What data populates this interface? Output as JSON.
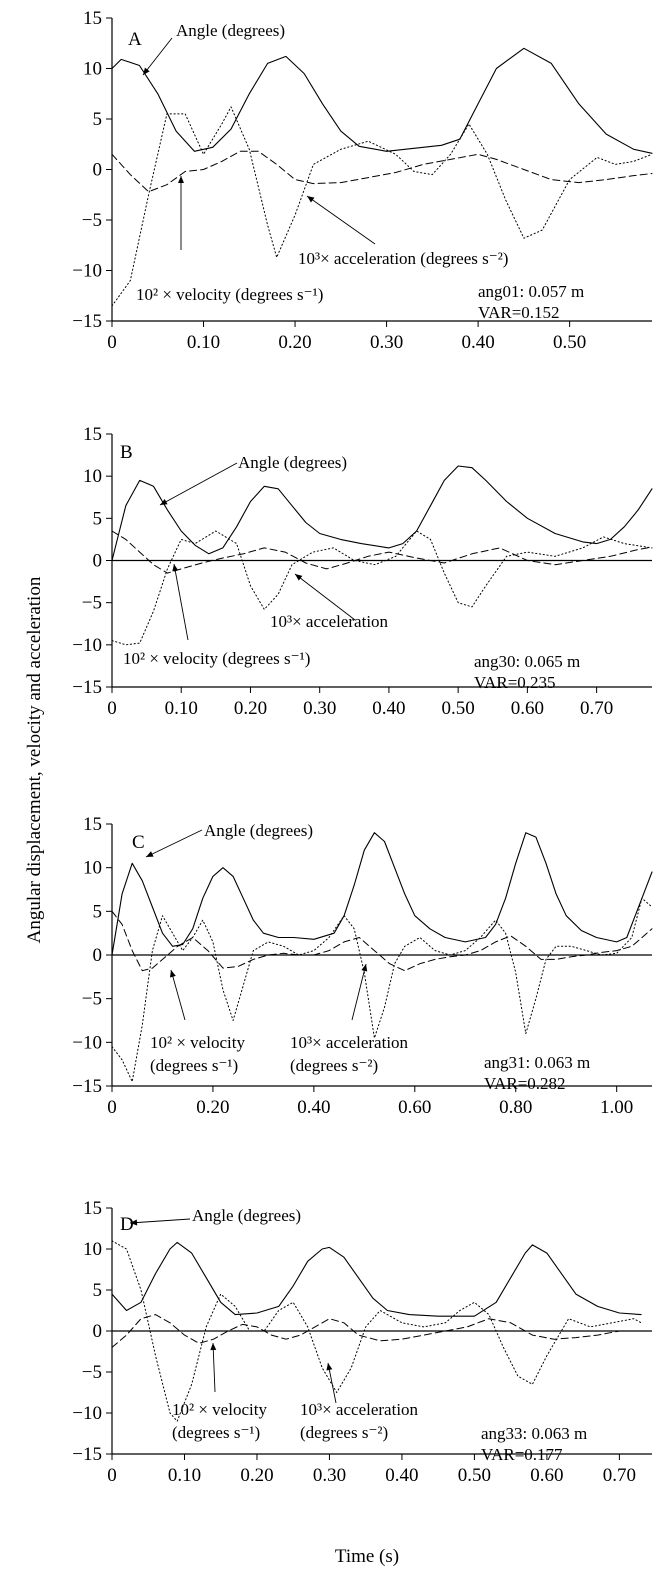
{
  "figure": {
    "ylabel": "Angular displacement, velocity and acceleration",
    "xlabel": "Time (s)"
  },
  "chart_data": [
    {
      "type": "line",
      "panel": "A",
      "xlim": [
        0,
        0.59
      ],
      "ylim": [
        -15,
        15
      ],
      "xticks": [
        0,
        0.1,
        0.2,
        0.3,
        0.4,
        0.5
      ],
      "xtick_labels": [
        "0",
        "0.10",
        "0.20",
        "0.30",
        "0.40",
        "0.50"
      ],
      "yticks": [
        15,
        10,
        5,
        0,
        -5,
        -10,
        -15
      ],
      "ytick_labels": [
        "15",
        "10",
        "5",
        "0",
        "−5",
        "−10",
        "−15"
      ],
      "zero_line": false,
      "info": [
        "ang01: 0.057 m",
        "VAR=0.152"
      ],
      "series": [
        {
          "style": "solid",
          "x": [
            0,
            0.01,
            0.03,
            0.05,
            0.07,
            0.09,
            0.11,
            0.13,
            0.15,
            0.17,
            0.19,
            0.21,
            0.23,
            0.25,
            0.27,
            0.3,
            0.33,
            0.36,
            0.38,
            0.4,
            0.42,
            0.45,
            0.48,
            0.51,
            0.54,
            0.57,
            0.59
          ],
          "y": [
            10.0,
            10.9,
            10.3,
            7.5,
            3.8,
            1.8,
            2.2,
            4.0,
            7.5,
            10.5,
            11.2,
            9.5,
            6.5,
            3.8,
            2.3,
            1.8,
            2.1,
            2.4,
            3.0,
            6.5,
            10.0,
            12.0,
            10.5,
            6.5,
            3.5,
            2.0,
            1.6
          ]
        },
        {
          "style": "dotted",
          "x": [
            0,
            0.02,
            0.04,
            0.06,
            0.08,
            0.1,
            0.12,
            0.13,
            0.15,
            0.17,
            0.18,
            0.2,
            0.22,
            0.25,
            0.28,
            0.31,
            0.33,
            0.35,
            0.37,
            0.39,
            0.41,
            0.43,
            0.45,
            0.47,
            0.5,
            0.53,
            0.55,
            0.57,
            0.59
          ],
          "y": [
            -13.5,
            -11.0,
            -2.5,
            5.5,
            5.5,
            1.5,
            4.5,
            6.2,
            2.0,
            -5.5,
            -8.7,
            -4.5,
            0.5,
            2.0,
            2.8,
            1.5,
            -0.2,
            -0.5,
            1.5,
            4.5,
            1.5,
            -3.0,
            -6.8,
            -6.0,
            -1.0,
            1.2,
            0.5,
            0.8,
            1.5
          ]
        },
        {
          "style": "dashed",
          "x": [
            0,
            0.02,
            0.04,
            0.06,
            0.08,
            0.1,
            0.12,
            0.14,
            0.16,
            0.18,
            0.2,
            0.22,
            0.25,
            0.28,
            0.31,
            0.34,
            0.37,
            0.4,
            0.42,
            0.45,
            0.48,
            0.51,
            0.54,
            0.57,
            0.59
          ],
          "y": [
            1.5,
            -0.5,
            -2.2,
            -1.5,
            -0.2,
            0.0,
            0.8,
            1.8,
            1.8,
            0.5,
            -1.0,
            -1.4,
            -1.3,
            -0.8,
            -0.3,
            0.5,
            1.0,
            1.5,
            1.0,
            0.0,
            -1.0,
            -1.3,
            -1.0,
            -0.6,
            -0.4
          ]
        }
      ],
      "annotations": [
        {
          "text": "Angle (degrees)"
        },
        {
          "text": "10² × velocity (degrees s⁻¹)"
        },
        {
          "text": "10³× acceleration (degrees s⁻²)"
        }
      ]
    },
    {
      "type": "line",
      "panel": "B",
      "xlim": [
        0,
        0.78
      ],
      "ylim": [
        -15,
        15
      ],
      "xticks": [
        0,
        0.1,
        0.2,
        0.3,
        0.4,
        0.5,
        0.6,
        0.7
      ],
      "xtick_labels": [
        "0",
        "0.10",
        "0.20",
        "0.30",
        "0.40",
        "0.50",
        "0.60",
        "0.70"
      ],
      "yticks": [
        15,
        10,
        5,
        0,
        -5,
        -10,
        -15
      ],
      "ytick_labels": [
        "15",
        "10",
        "5",
        "0",
        "−5",
        "−10",
        "−15"
      ],
      "zero_line": true,
      "info": [
        "ang30: 0.065 m",
        "VAR=0.235"
      ],
      "series": [
        {
          "style": "solid",
          "x": [
            0,
            0.02,
            0.04,
            0.06,
            0.08,
            0.1,
            0.12,
            0.14,
            0.16,
            0.18,
            0.2,
            0.22,
            0.24,
            0.26,
            0.28,
            0.3,
            0.33,
            0.36,
            0.4,
            0.42,
            0.44,
            0.46,
            0.48,
            0.5,
            0.52,
            0.54,
            0.57,
            0.6,
            0.64,
            0.68,
            0.7,
            0.72,
            0.74,
            0.76,
            0.78
          ],
          "y": [
            0.0,
            6.5,
            9.5,
            8.8,
            6.0,
            3.5,
            1.8,
            0.8,
            1.5,
            4.0,
            7.0,
            8.8,
            8.5,
            6.5,
            4.5,
            3.2,
            2.5,
            2.0,
            1.5,
            2.0,
            3.5,
            6.5,
            9.5,
            11.2,
            11.0,
            9.5,
            7.0,
            5.0,
            3.2,
            2.2,
            2.0,
            2.5,
            4.0,
            6.0,
            8.5
          ]
        },
        {
          "style": "dotted",
          "x": [
            0,
            0.02,
            0.04,
            0.06,
            0.08,
            0.1,
            0.12,
            0.15,
            0.18,
            0.2,
            0.22,
            0.24,
            0.26,
            0.29,
            0.32,
            0.35,
            0.38,
            0.41,
            0.44,
            0.46,
            0.48,
            0.5,
            0.52,
            0.54,
            0.57,
            0.6,
            0.64,
            0.68,
            0.71,
            0.74,
            0.78
          ],
          "y": [
            -9.5,
            -10.0,
            -9.8,
            -6.0,
            -1.0,
            2.5,
            2.0,
            3.5,
            2.0,
            -3.0,
            -5.8,
            -4.0,
            -0.5,
            1.0,
            1.5,
            0.0,
            -0.5,
            0.5,
            3.5,
            2.5,
            -1.5,
            -5.0,
            -5.5,
            -3.0,
            0.5,
            1.0,
            0.5,
            1.5,
            2.8,
            2.0,
            1.5
          ]
        },
        {
          "style": "dashed",
          "x": [
            0,
            0.02,
            0.04,
            0.06,
            0.08,
            0.1,
            0.13,
            0.16,
            0.19,
            0.22,
            0.25,
            0.28,
            0.31,
            0.34,
            0.37,
            0.4,
            0.44,
            0.48,
            0.52,
            0.56,
            0.6,
            0.64,
            0.68,
            0.72,
            0.76,
            0.78
          ],
          "y": [
            3.5,
            2.5,
            1.0,
            -0.5,
            -1.5,
            -1.0,
            -0.3,
            0.3,
            0.8,
            1.5,
            1.0,
            -0.3,
            -1.0,
            -0.3,
            0.5,
            1.0,
            0.3,
            -0.3,
            0.8,
            1.5,
            0.0,
            -0.5,
            0.0,
            0.5,
            1.3,
            1.6
          ]
        }
      ],
      "annotations": [
        {
          "text": "Angle (degrees)"
        },
        {
          "text": "10² × velocity (degrees s⁻¹)"
        },
        {
          "text": "10³× acceleration"
        }
      ]
    },
    {
      "type": "line",
      "panel": "C",
      "xlim": [
        0,
        1.07
      ],
      "ylim": [
        -15,
        15
      ],
      "xticks": [
        0,
        0.2,
        0.4,
        0.6,
        0.8,
        1.0
      ],
      "xtick_labels": [
        "0",
        "0.20",
        "0.40",
        "0.60",
        "0.80",
        "1.00"
      ],
      "yticks": [
        15,
        10,
        5,
        0,
        -5,
        -10,
        -15
      ],
      "ytick_labels": [
        "15",
        "10",
        "5",
        "0",
        "−5",
        "−10",
        "−15"
      ],
      "zero_line": true,
      "info": [
        "ang31: 0.063 m",
        "VAR=0.282"
      ],
      "series": [
        {
          "style": "solid",
          "x": [
            0,
            0.02,
            0.04,
            0.06,
            0.08,
            0.1,
            0.12,
            0.14,
            0.16,
            0.18,
            0.2,
            0.22,
            0.24,
            0.26,
            0.28,
            0.3,
            0.33,
            0.36,
            0.4,
            0.44,
            0.46,
            0.48,
            0.5,
            0.52,
            0.54,
            0.56,
            0.58,
            0.6,
            0.63,
            0.66,
            0.7,
            0.74,
            0.76,
            0.78,
            0.8,
            0.82,
            0.84,
            0.86,
            0.88,
            0.9,
            0.93,
            0.96,
            1.0,
            1.02,
            1.04,
            1.07
          ],
          "y": [
            0.0,
            7.0,
            10.5,
            8.5,
            5.5,
            2.5,
            1.0,
            1.2,
            3.0,
            6.5,
            9.0,
            10.0,
            9.0,
            6.5,
            4.0,
            2.5,
            2.0,
            2.0,
            1.8,
            2.5,
            4.5,
            8.0,
            12.0,
            14.0,
            13.0,
            10.0,
            7.0,
            4.5,
            3.0,
            2.0,
            1.5,
            2.0,
            3.5,
            6.5,
            10.5,
            14.0,
            13.5,
            10.5,
            7.0,
            4.5,
            2.8,
            2.0,
            1.5,
            2.0,
            5.0,
            9.5
          ]
        },
        {
          "style": "dotted",
          "x": [
            0,
            0.02,
            0.04,
            0.06,
            0.08,
            0.1,
            0.12,
            0.14,
            0.16,
            0.18,
            0.2,
            0.22,
            0.24,
            0.26,
            0.28,
            0.31,
            0.34,
            0.37,
            0.4,
            0.43,
            0.46,
            0.48,
            0.5,
            0.52,
            0.54,
            0.56,
            0.58,
            0.61,
            0.64,
            0.67,
            0.7,
            0.73,
            0.76,
            0.78,
            0.8,
            0.82,
            0.84,
            0.86,
            0.88,
            0.91,
            0.94,
            0.97,
            1.0,
            1.03,
            1.05,
            1.07
          ],
          "y": [
            -10.5,
            -12.0,
            -14.5,
            -8.0,
            0.5,
            4.5,
            2.5,
            0.5,
            2.0,
            4.0,
            1.5,
            -4.0,
            -7.5,
            -3.5,
            0.5,
            1.5,
            1.0,
            0.0,
            0.5,
            2.0,
            4.5,
            3.0,
            -2.0,
            -9.5,
            -6.0,
            -1.0,
            1.0,
            2.0,
            0.5,
            0.0,
            0.5,
            2.0,
            4.0,
            2.5,
            -2.0,
            -9.0,
            -5.0,
            -0.5,
            1.0,
            1.0,
            0.5,
            0.0,
            0.2,
            2.0,
            6.5,
            5.5
          ]
        },
        {
          "style": "dashed",
          "x": [
            0,
            0.02,
            0.04,
            0.06,
            0.08,
            0.1,
            0.13,
            0.16,
            0.19,
            0.22,
            0.25,
            0.28,
            0.31,
            0.34,
            0.37,
            0.4,
            0.43,
            0.46,
            0.49,
            0.52,
            0.55,
            0.58,
            0.61,
            0.64,
            0.67,
            0.7,
            0.73,
            0.76,
            0.79,
            0.82,
            0.85,
            0.88,
            0.91,
            0.94,
            0.97,
            1.0,
            1.03,
            1.07
          ],
          "y": [
            5.0,
            3.5,
            0.5,
            -1.8,
            -1.5,
            -0.5,
            1.0,
            2.0,
            0.5,
            -1.5,
            -1.3,
            -0.5,
            0.0,
            0.2,
            0.0,
            0.0,
            0.5,
            1.5,
            2.0,
            0.5,
            -1.0,
            -1.8,
            -1.0,
            -0.5,
            -0.2,
            0.0,
            0.5,
            1.5,
            2.2,
            1.0,
            -0.5,
            -0.5,
            -0.2,
            0.0,
            0.3,
            0.5,
            1.0,
            3.0
          ]
        }
      ],
      "annotations": [
        {
          "text": "Angle (degrees)"
        },
        {
          "text": "10² × velocity"
        },
        {
          "text": "(degrees s⁻¹)"
        },
        {
          "text": "10³× acceleration"
        },
        {
          "text": "(degrees s⁻²)"
        }
      ]
    },
    {
      "type": "line",
      "panel": "D",
      "xlim": [
        0,
        0.745
      ],
      "ylim": [
        -15,
        15
      ],
      "xticks": [
        0,
        0.1,
        0.2,
        0.3,
        0.4,
        0.5,
        0.6,
        0.7
      ],
      "xtick_labels": [
        "0",
        "0.10",
        "0.20",
        "0.30",
        "0.40",
        "0.50",
        "0.60",
        "0.70"
      ],
      "yticks": [
        15,
        10,
        5,
        0,
        -5,
        -10,
        -15
      ],
      "ytick_labels": [
        "15",
        "10",
        "5",
        "0",
        "−5",
        "−10",
        "−15"
      ],
      "zero_line": true,
      "info": [
        "ang33: 0.063 m",
        "VAR=0.177"
      ],
      "series": [
        {
          "style": "solid",
          "x": [
            0,
            0.02,
            0.04,
            0.06,
            0.08,
            0.09,
            0.11,
            0.13,
            0.15,
            0.17,
            0.2,
            0.23,
            0.25,
            0.27,
            0.29,
            0.3,
            0.32,
            0.34,
            0.36,
            0.38,
            0.41,
            0.45,
            0.5,
            0.53,
            0.55,
            0.57,
            0.58,
            0.6,
            0.62,
            0.64,
            0.67,
            0.7,
            0.73
          ],
          "y": [
            4.5,
            2.5,
            3.5,
            7.0,
            10.0,
            10.8,
            9.5,
            6.5,
            3.5,
            2.0,
            2.2,
            3.0,
            5.5,
            8.5,
            10.0,
            10.2,
            9.0,
            6.5,
            4.0,
            2.5,
            2.0,
            1.8,
            1.8,
            3.5,
            6.5,
            9.5,
            10.5,
            9.5,
            7.0,
            4.5,
            3.0,
            2.2,
            2.0
          ]
        },
        {
          "style": "dotted",
          "x": [
            0,
            0.02,
            0.04,
            0.06,
            0.08,
            0.09,
            0.11,
            0.13,
            0.15,
            0.17,
            0.19,
            0.21,
            0.23,
            0.25,
            0.27,
            0.29,
            0.31,
            0.33,
            0.35,
            0.37,
            0.4,
            0.43,
            0.46,
            0.48,
            0.5,
            0.52,
            0.54,
            0.56,
            0.58,
            0.6,
            0.63,
            0.66,
            0.69,
            0.72,
            0.73
          ],
          "y": [
            11.0,
            10.0,
            5.0,
            -3.0,
            -10.0,
            -11.0,
            -6.5,
            0.5,
            4.5,
            3.0,
            0.0,
            0.0,
            2.5,
            3.5,
            0.5,
            -4.5,
            -7.5,
            -4.5,
            0.5,
            2.5,
            1.0,
            0.5,
            1.0,
            2.5,
            3.5,
            2.0,
            -2.0,
            -5.5,
            -6.5,
            -3.0,
            1.5,
            0.5,
            1.0,
            1.5,
            1.0
          ]
        },
        {
          "style": "dashed",
          "x": [
            0,
            0.02,
            0.04,
            0.06,
            0.08,
            0.1,
            0.12,
            0.14,
            0.16,
            0.18,
            0.2,
            0.22,
            0.24,
            0.26,
            0.28,
            0.3,
            0.32,
            0.34,
            0.37,
            0.4,
            0.43,
            0.46,
            0.49,
            0.52,
            0.55,
            0.58,
            0.61,
            0.64,
            0.67,
            0.7,
            0.73
          ],
          "y": [
            -2.0,
            -0.5,
            1.5,
            2.0,
            1.0,
            -0.5,
            -1.5,
            -1.0,
            0.0,
            0.8,
            0.5,
            -0.5,
            -1.0,
            -0.5,
            0.5,
            1.5,
            1.0,
            -0.5,
            -1.2,
            -1.0,
            -0.5,
            0.0,
            0.5,
            1.5,
            1.0,
            -0.5,
            -1.0,
            -0.8,
            -0.5,
            0.0,
            0.0
          ]
        }
      ],
      "annotations": [
        {
          "text": "Angle (degrees)"
        },
        {
          "text": "10² × velocity"
        },
        {
          "text": "(degrees s⁻¹)"
        },
        {
          "text": "10³× acceleration"
        },
        {
          "text": "(degrees s⁻²)"
        }
      ]
    }
  ]
}
